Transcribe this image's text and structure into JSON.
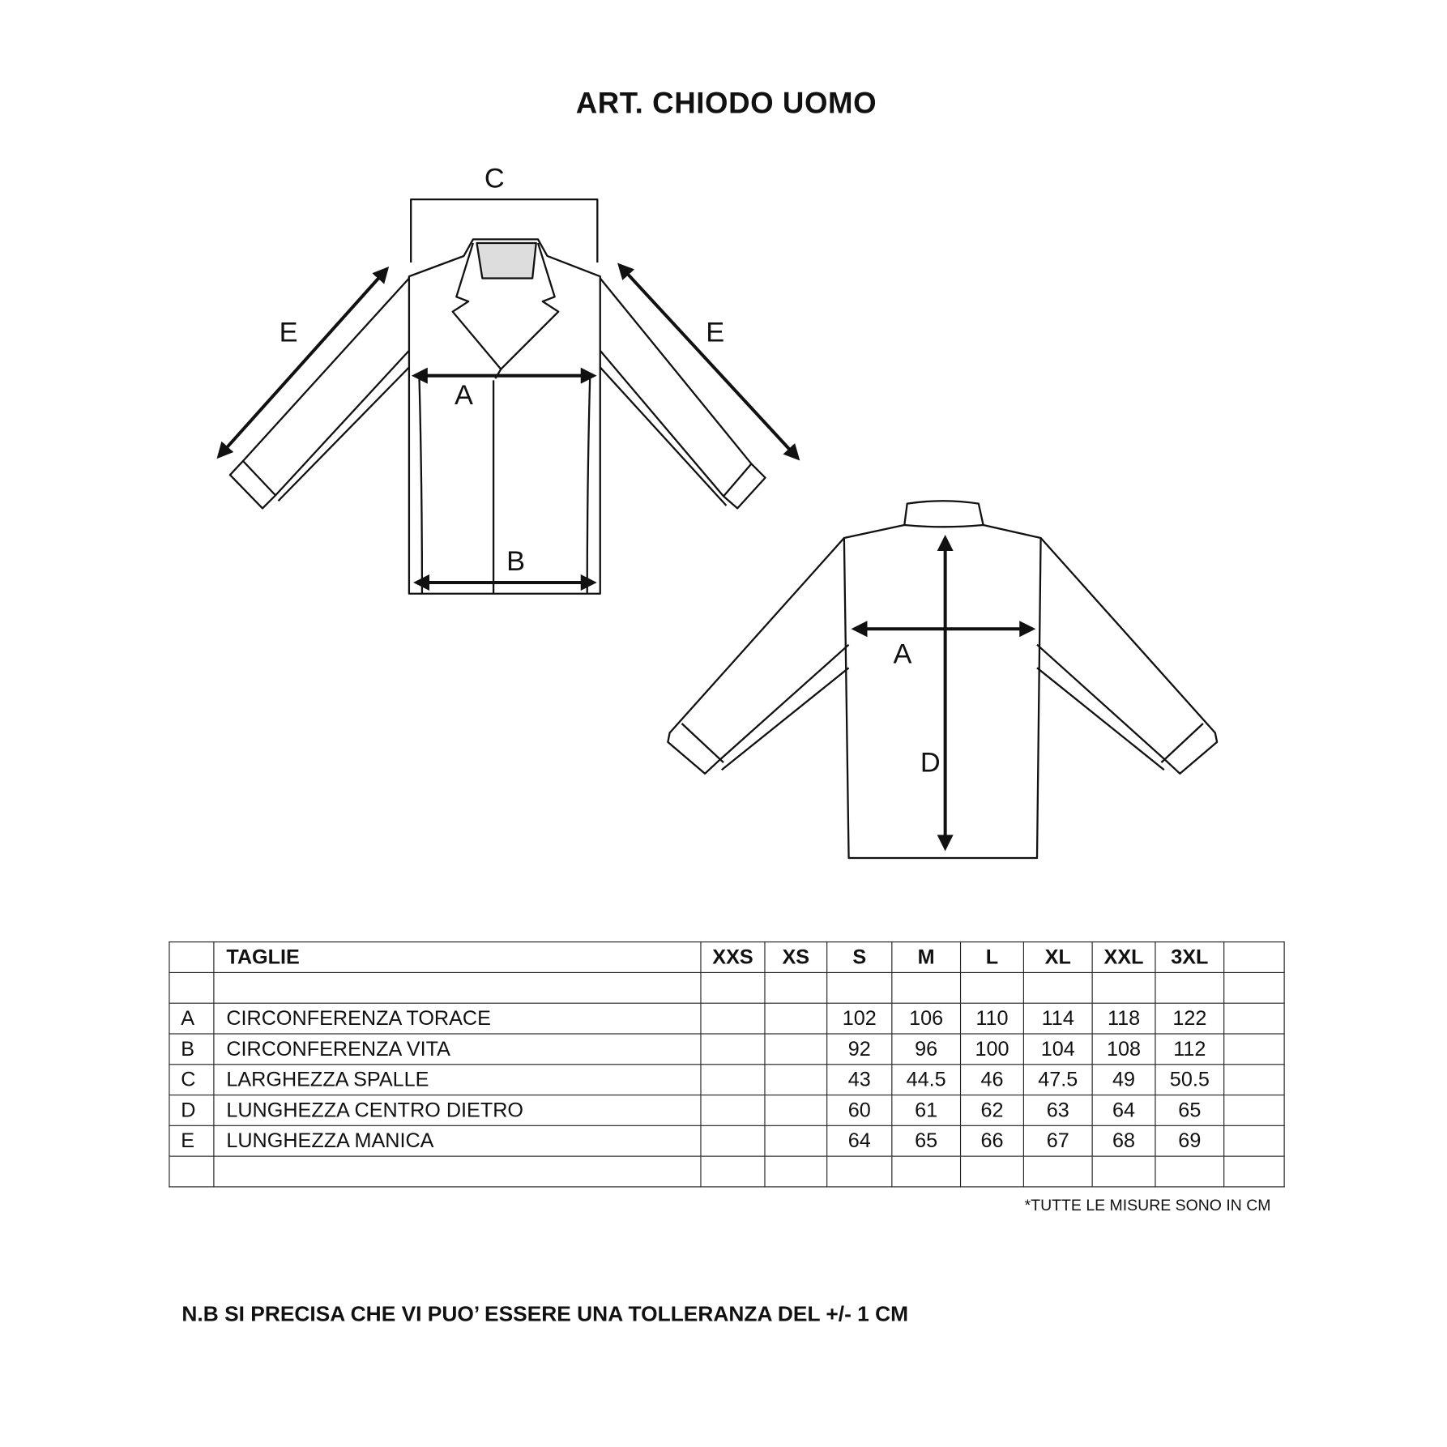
{
  "title": "ART. CHIODO UOMO",
  "diagram_labels": {
    "A": "A",
    "B": "B",
    "C": "C",
    "D": "D",
    "E": "E"
  },
  "table": {
    "header": {
      "code": "",
      "label": "TAGLIE",
      "sizes": [
        "XXS",
        "XS",
        "S",
        "M",
        "L",
        "XL",
        "XXL",
        "3XL",
        ""
      ]
    },
    "rows": [
      {
        "code": "",
        "label": "",
        "values": [
          "",
          "",
          "",
          "",
          "",
          "",
          "",
          "",
          ""
        ]
      },
      {
        "code": "A",
        "label": "CIRCONFERENZA TORACE",
        "values": [
          "",
          "",
          "102",
          "106",
          "110",
          "114",
          "118",
          "122",
          ""
        ]
      },
      {
        "code": "B",
        "label": "CIRCONFERENZA VITA",
        "values": [
          "",
          "",
          "92",
          "96",
          "100",
          "104",
          "108",
          "112",
          ""
        ]
      },
      {
        "code": "C",
        "label": "LARGHEZZA SPALLE",
        "values": [
          "",
          "",
          "43",
          "44.5",
          "46",
          "47.5",
          "49",
          "50.5",
          ""
        ]
      },
      {
        "code": "D",
        "label": "LUNGHEZZA CENTRO DIETRO",
        "values": [
          "",
          "",
          "60",
          "61",
          "62",
          "63",
          "64",
          "65",
          ""
        ]
      },
      {
        "code": "E",
        "label": "LUNGHEZZA MANICA",
        "values": [
          "",
          "",
          "64",
          "65",
          "66",
          "67",
          "68",
          "69",
          ""
        ]
      },
      {
        "code": "",
        "label": "",
        "values": [
          "",
          "",
          "",
          "",
          "",
          "",
          "",
          "",
          ""
        ]
      }
    ]
  },
  "footnote": "*TUTTE LE MISURE SONO IN CM",
  "note": "N.B SI PRECISA CHE VI PUO’ ESSERE UNA TOLLERANZA DEL +/- 1 CM"
}
